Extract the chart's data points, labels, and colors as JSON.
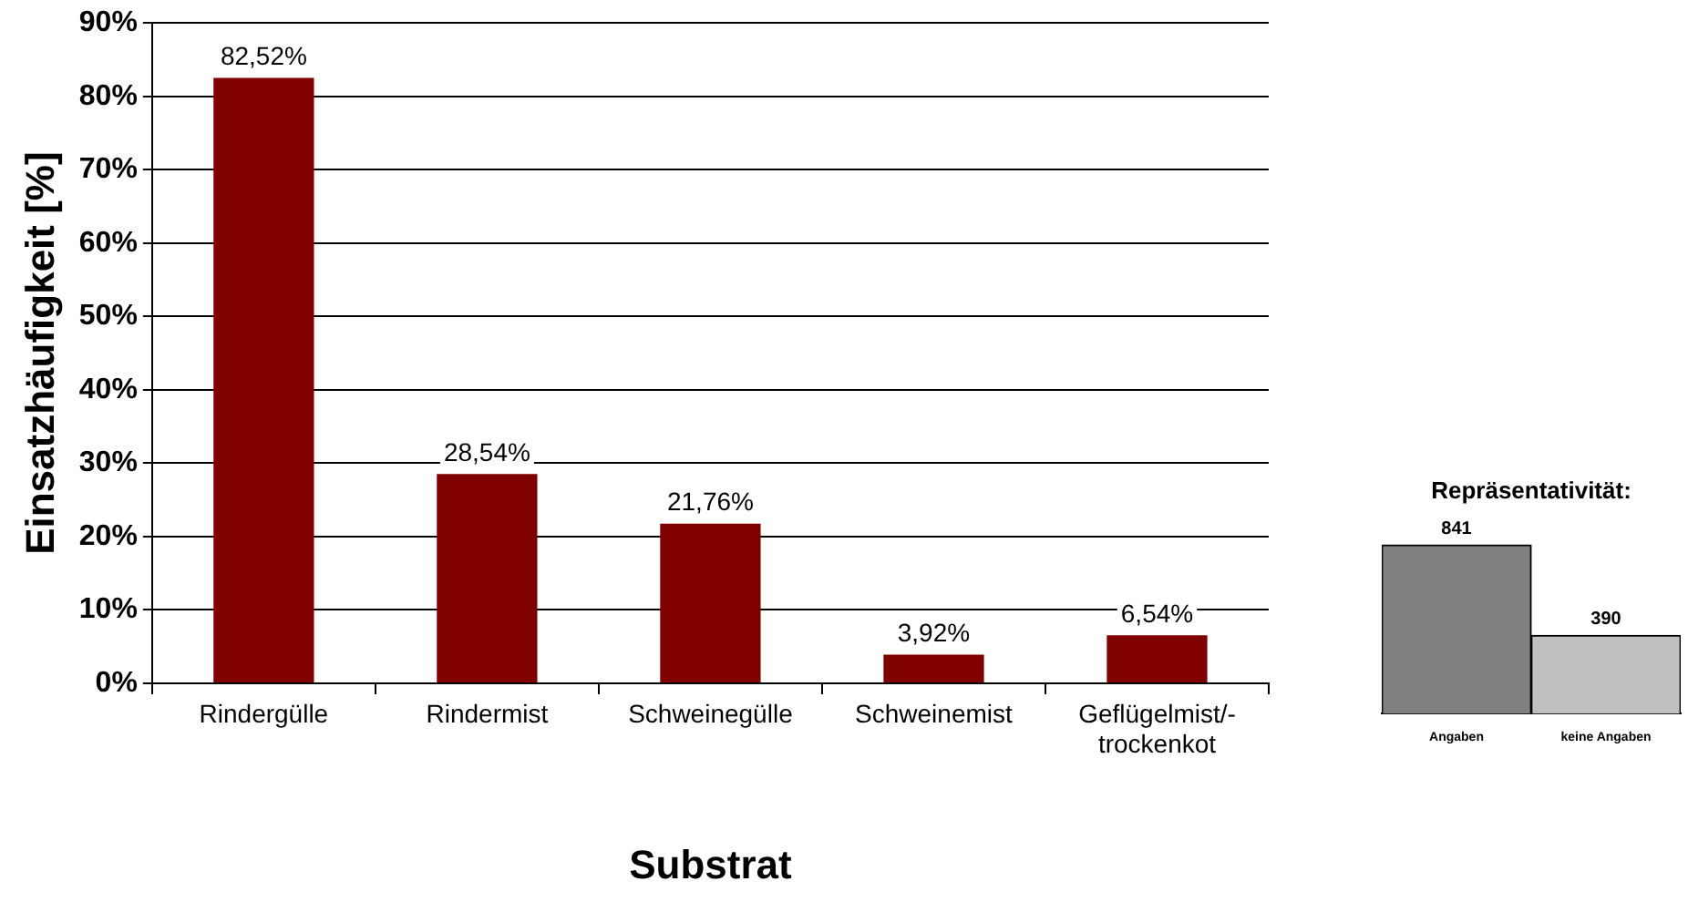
{
  "chart_data": [
    {
      "type": "bar",
      "ylabel": "Einsatzhäufigkeit [%]",
      "xlabel": "Substrat",
      "categories": [
        "Rindergülle",
        "Rindermist",
        "Schweinegülle",
        "Schweinemist",
        "Geflügelmist/-\ntrockenkot"
      ],
      "values": [
        82.52,
        28.54,
        21.76,
        3.92,
        6.54
      ],
      "color": "#800000",
      "value_labels": [
        "82,52%",
        "28,54%",
        "21,76%",
        "3,92%",
        "6,54%"
      ],
      "ylim": [
        0,
        90
      ],
      "yticks": [
        {
          "value": 0,
          "label": "0%"
        },
        {
          "value": 10,
          "label": "10%"
        },
        {
          "value": 20,
          "label": "20%"
        },
        {
          "value": 30,
          "label": "30%"
        },
        {
          "value": 40,
          "label": "40%"
        },
        {
          "value": 50,
          "label": "50%"
        },
        {
          "value": 60,
          "label": "60%"
        },
        {
          "value": 70,
          "label": "70%"
        },
        {
          "value": 80,
          "label": "80%"
        },
        {
          "value": 90,
          "label": "90%"
        }
      ],
      "grid": "y"
    },
    {
      "type": "bar",
      "title": "Repräsentativität:",
      "categories": [
        "Angaben",
        "keine Angaben"
      ],
      "values": [
        841,
        390
      ],
      "colors": [
        "#808080",
        "#c0c0c0"
      ],
      "data_labels": true
    }
  ]
}
